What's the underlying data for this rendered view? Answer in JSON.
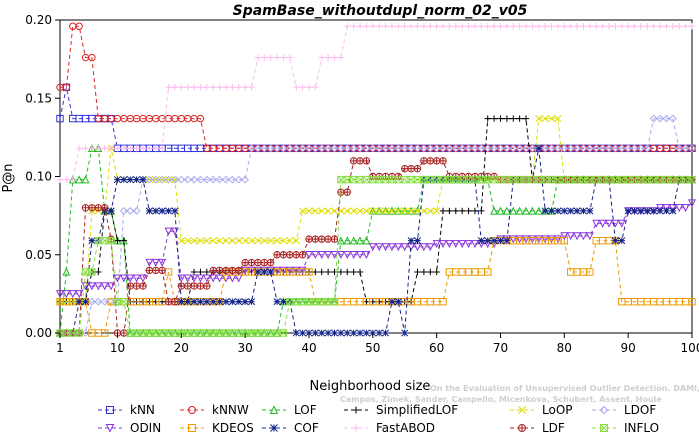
{
  "chart_data": {
    "type": "line",
    "title": "SpamBase_withoutdupl_norm_02_v05",
    "xlabel": "Neighborhood size",
    "ylabel": "P@n",
    "xlim": [
      1,
      100
    ],
    "ylim": [
      0,
      0.2
    ],
    "x_ticks": [
      1,
      10,
      20,
      30,
      40,
      50,
      60,
      70,
      80,
      90,
      100
    ],
    "y_ticks": [
      0.0,
      0.05,
      0.1,
      0.15,
      0.2
    ],
    "y_tick_labels": [
      "0.00",
      "0.05",
      "0.10",
      "0.15",
      "0.20"
    ],
    "grid": false,
    "legend_position": "bottom",
    "watermark": [
      "Campos, Zimek, Sander, Campello, Micenkova, Schubert, Assent, Houle",
      "On the Evaluation of Unsupervised Outlier Detection. DAMI, 2015."
    ],
    "series": [
      {
        "name": "kNN",
        "color": "#3333dd",
        "marker": "square",
        "points": [
          [
            1,
            0.137
          ],
          [
            2,
            0.157
          ],
          [
            3,
            0.137
          ],
          [
            9,
            0.137
          ],
          [
            10,
            0.118
          ],
          [
            100,
            0.118
          ]
        ]
      },
      {
        "name": "kNNW",
        "color": "#dd2222",
        "marker": "circle",
        "points": [
          [
            1,
            0.157
          ],
          [
            2,
            0.157
          ],
          [
            3,
            0.196
          ],
          [
            4,
            0.196
          ],
          [
            5,
            0.176
          ],
          [
            6,
            0.176
          ],
          [
            7,
            0.137
          ],
          [
            23,
            0.137
          ],
          [
            24,
            0.118
          ],
          [
            100,
            0.118
          ]
        ]
      },
      {
        "name": "LOF",
        "color": "#22bb22",
        "marker": "triangle",
        "points": [
          [
            1,
            0.0
          ],
          [
            2,
            0.039
          ],
          [
            3,
            0.098
          ],
          [
            5,
            0.098
          ],
          [
            6,
            0.118
          ],
          [
            7,
            0.118
          ],
          [
            8,
            0.078
          ],
          [
            10,
            0.059
          ],
          [
            12,
            0.0
          ],
          [
            25,
            0.0
          ],
          [
            36,
            0.02
          ],
          [
            44,
            0.02
          ],
          [
            45,
            0.059
          ],
          [
            48,
            0.059
          ],
          [
            50,
            0.078
          ],
          [
            57,
            0.078
          ],
          [
            58,
            0.098
          ],
          [
            68,
            0.098
          ],
          [
            69,
            0.078
          ],
          [
            78,
            0.078
          ],
          [
            79,
            0.098
          ],
          [
            100,
            0.098
          ]
        ]
      },
      {
        "name": "SimplifiedLOF",
        "color": "#000000",
        "marker": "plus",
        "points": [
          [
            1,
            0.02
          ],
          [
            5,
            0.02
          ],
          [
            6,
            0.039
          ],
          [
            8,
            0.078
          ],
          [
            10,
            0.059
          ],
          [
            12,
            0.02
          ],
          [
            20,
            0.02
          ],
          [
            22,
            0.039
          ],
          [
            40,
            0.039
          ],
          [
            49,
            0.02
          ],
          [
            56,
            0.02
          ],
          [
            57,
            0.039
          ],
          [
            60,
            0.039
          ],
          [
            61,
            0.078
          ],
          [
            67,
            0.078
          ],
          [
            68,
            0.137
          ],
          [
            74,
            0.137
          ],
          [
            75,
            0.098
          ],
          [
            100,
            0.098
          ]
        ]
      },
      {
        "name": "LoOP",
        "color": "#dddd00",
        "marker": "x",
        "points": [
          [
            1,
            0.02
          ],
          [
            5,
            0.02
          ],
          [
            6,
            0.078
          ],
          [
            8,
            0.078
          ],
          [
            9,
            0.118
          ],
          [
            10,
            0.098
          ],
          [
            15,
            0.098
          ],
          [
            18,
            0.098
          ],
          [
            20,
            0.059
          ],
          [
            38,
            0.059
          ],
          [
            39,
            0.078
          ],
          [
            46,
            0.078
          ],
          [
            48,
            0.078
          ],
          [
            60,
            0.078
          ],
          [
            61,
            0.098
          ],
          [
            76,
            0.137
          ],
          [
            80,
            0.098
          ],
          [
            100,
            0.098
          ]
        ]
      },
      {
        "name": "LDOF",
        "color": "#aaaaee",
        "marker": "diamond",
        "points": [
          [
            1,
            0.0
          ],
          [
            5,
            0.0
          ],
          [
            6,
            0.02
          ],
          [
            10,
            0.02
          ],
          [
            11,
            0.078
          ],
          [
            13,
            0.078
          ],
          [
            14,
            0.098
          ],
          [
            30,
            0.098
          ],
          [
            31,
            0.118
          ],
          [
            93,
            0.118
          ],
          [
            94,
            0.137
          ],
          [
            97,
            0.137
          ],
          [
            98,
            0.118
          ],
          [
            100,
            0.118
          ]
        ]
      },
      {
        "name": "ODIN",
        "color": "#8833dd",
        "marker": "triangle-down",
        "points": [
          [
            1,
            0.025
          ],
          [
            5,
            0.03
          ],
          [
            10,
            0.035
          ],
          [
            15,
            0.045
          ],
          [
            18,
            0.065
          ],
          [
            20,
            0.035
          ],
          [
            30,
            0.04
          ],
          [
            40,
            0.05
          ],
          [
            50,
            0.055
          ],
          [
            60,
            0.057
          ],
          [
            70,
            0.06
          ],
          [
            80,
            0.062
          ],
          [
            85,
            0.07
          ],
          [
            90,
            0.078
          ],
          [
            95,
            0.08
          ],
          [
            100,
            0.083
          ]
        ]
      },
      {
        "name": "KDEOS",
        "color": "#ee9900",
        "marker": "square",
        "points": [
          [
            1,
            0.02
          ],
          [
            5,
            0.02
          ],
          [
            6,
            0.0
          ],
          [
            8,
            0.0
          ],
          [
            9,
            0.02
          ],
          [
            17,
            0.02
          ],
          [
            18,
            0.039
          ],
          [
            19,
            0.02
          ],
          [
            26,
            0.02
          ],
          [
            27,
            0.039
          ],
          [
            40,
            0.039
          ],
          [
            41,
            0.02
          ],
          [
            61,
            0.02
          ],
          [
            62,
            0.039
          ],
          [
            68,
            0.039
          ],
          [
            69,
            0.059
          ],
          [
            80,
            0.059
          ],
          [
            81,
            0.039
          ],
          [
            84,
            0.039
          ],
          [
            85,
            0.059
          ],
          [
            88,
            0.059
          ],
          [
            89,
            0.02
          ],
          [
            100,
            0.02
          ]
        ]
      },
      {
        "name": "COF",
        "color": "#112288",
        "marker": "asterisk",
        "points": [
          [
            1,
            0.0
          ],
          [
            3,
            0.0
          ],
          [
            4,
            0.02
          ],
          [
            6,
            0.059
          ],
          [
            8,
            0.078
          ],
          [
            10,
            0.098
          ],
          [
            14,
            0.098
          ],
          [
            15,
            0.078
          ],
          [
            18,
            0.078
          ],
          [
            20,
            0.02
          ],
          [
            30,
            0.02
          ],
          [
            32,
            0.039
          ],
          [
            35,
            0.02
          ],
          [
            38,
            0.0
          ],
          [
            52,
            0.0
          ],
          [
            53,
            0.02
          ],
          [
            55,
            0.0
          ],
          [
            56,
            0.059
          ],
          [
            58,
            0.098
          ],
          [
            65,
            0.098
          ],
          [
            67,
            0.059
          ],
          [
            70,
            0.059
          ],
          [
            72,
            0.098
          ],
          [
            74,
            0.098
          ],
          [
            76,
            0.118
          ],
          [
            77,
            0.078
          ],
          [
            82,
            0.078
          ],
          [
            85,
            0.098
          ],
          [
            87,
            0.098
          ],
          [
            88,
            0.059
          ],
          [
            90,
            0.078
          ],
          [
            97,
            0.078
          ],
          [
            98,
            0.098
          ],
          [
            100,
            0.098
          ]
        ]
      },
      {
        "name": "FastABOD",
        "color": "#ffbbee",
        "marker": "plus",
        "points": [
          [
            1,
            0.098
          ],
          [
            3,
            0.098
          ],
          [
            4,
            0.118
          ],
          [
            17,
            0.118
          ],
          [
            18,
            0.157
          ],
          [
            31,
            0.157
          ],
          [
            32,
            0.176
          ],
          [
            37,
            0.176
          ],
          [
            38,
            0.157
          ],
          [
            41,
            0.157
          ],
          [
            42,
            0.176
          ],
          [
            45,
            0.176
          ],
          [
            46,
            0.196
          ],
          [
            100,
            0.196
          ]
        ]
      },
      {
        "name": "LDF",
        "color": "#aa2222",
        "marker": "circle-plus",
        "points": [
          [
            1,
            0.0
          ],
          [
            3,
            0.0
          ],
          [
            5,
            0.08
          ],
          [
            9,
            0.06
          ],
          [
            10,
            0.0
          ],
          [
            12,
            0.03
          ],
          [
            15,
            0.04
          ],
          [
            18,
            0.02
          ],
          [
            20,
            0.03
          ],
          [
            25,
            0.04
          ],
          [
            30,
            0.045
          ],
          [
            35,
            0.05
          ],
          [
            40,
            0.06
          ],
          [
            45,
            0.09
          ],
          [
            47,
            0.11
          ],
          [
            50,
            0.1
          ],
          [
            55,
            0.105
          ],
          [
            58,
            0.11
          ],
          [
            62,
            0.1
          ],
          [
            70,
            0.098
          ],
          [
            80,
            0.098
          ],
          [
            100,
            0.098
          ]
        ]
      },
      {
        "name": "INFLO",
        "color": "#88dd44",
        "marker": "square-x",
        "points": [
          [
            1,
            0.0
          ],
          [
            4,
            0.0
          ],
          [
            5,
            0.039
          ],
          [
            7,
            0.059
          ],
          [
            10,
            0.02
          ],
          [
            12,
            0.0
          ],
          [
            36,
            0.0
          ],
          [
            37,
            0.02
          ],
          [
            44,
            0.02
          ],
          [
            45,
            0.098
          ],
          [
            60,
            0.098
          ],
          [
            70,
            0.098
          ],
          [
            100,
            0.098
          ]
        ]
      }
    ]
  }
}
